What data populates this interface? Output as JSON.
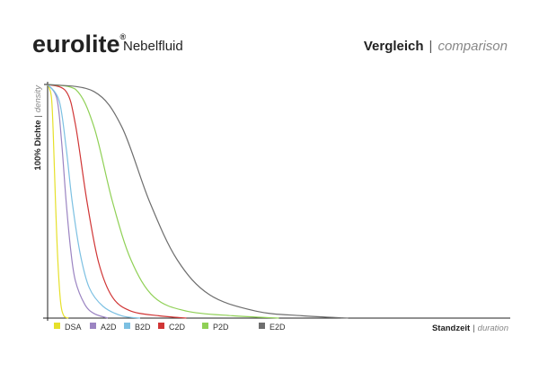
{
  "chart_data": {
    "type": "line",
    "brand": {
      "logo": "eurolite",
      "trademark": "®",
      "product": "Nebelfluid"
    },
    "title": {
      "main": "Vergleich",
      "separator": "|",
      "sub": "comparison"
    },
    "y_label": {
      "main": "100% Dichte",
      "separator": "|",
      "sub": "density"
    },
    "x_label": {
      "main": "Standzeit",
      "separator": "|",
      "sub": "duration"
    },
    "xlim": [
      0,
      100
    ],
    "ylim": [
      0,
      100
    ],
    "series": [
      {
        "name": "DSA",
        "color": "#e6e02a",
        "x": [
          0,
          0.8,
          1.2,
          1.7,
          2.2,
          2.8,
          3.5,
          4.5
        ],
        "values": [
          100,
          95,
          80,
          50,
          25,
          7,
          1,
          0
        ]
      },
      {
        "name": "A2D",
        "color": "#9b84c2",
        "x": [
          0,
          2,
          3,
          4,
          5,
          6,
          8,
          10,
          13
        ],
        "values": [
          100,
          94,
          76,
          50,
          29,
          16,
          6,
          2,
          0
        ]
      },
      {
        "name": "B2D",
        "color": "#7cc0e2",
        "x": [
          0,
          2.5,
          4,
          5.3,
          7,
          9,
          12,
          16,
          20
        ],
        "values": [
          100,
          93,
          73,
          50,
          28,
          13,
          5,
          1,
          0
        ]
      },
      {
        "name": "C2D",
        "color": "#d03535",
        "x": [
          0,
          4,
          6,
          8.5,
          11,
          14,
          18,
          24,
          30
        ],
        "values": [
          100,
          97,
          83,
          50,
          24,
          9,
          3,
          1,
          0
        ]
      },
      {
        "name": "P2D",
        "color": "#8fd055",
        "x": [
          0,
          6,
          10,
          14,
          18,
          23,
          30,
          40,
          50
        ],
        "values": [
          100,
          98,
          82,
          50,
          25,
          9,
          3,
          1,
          0
        ]
      },
      {
        "name": "E2D",
        "color": "#6e6e6e",
        "x": [
          0,
          10,
          16,
          22,
          28,
          35,
          45,
          55,
          65
        ],
        "values": [
          100,
          97,
          82,
          50,
          25,
          10,
          3,
          1,
          0
        ]
      }
    ]
  }
}
